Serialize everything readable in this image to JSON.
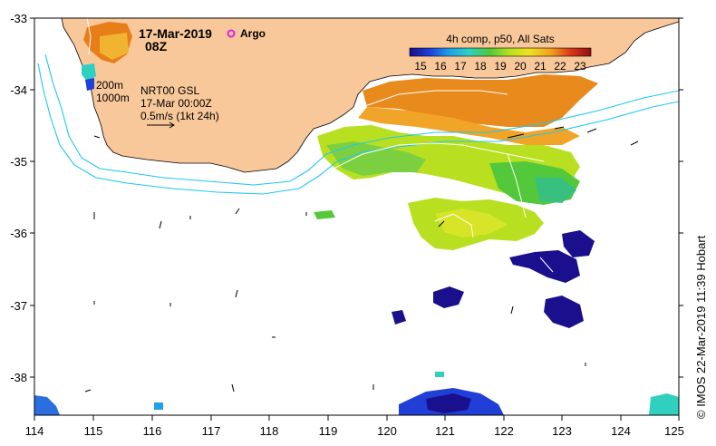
{
  "header": {
    "date": "17-Mar-2019",
    "time": "08Z",
    "argo_label": "Argo"
  },
  "info": {
    "contour_200": "200m",
    "contour_1000": "1000m",
    "product": "NRT00 GSL",
    "product_time": "17-Mar 00:00Z",
    "vector_scale": "0.5m/s (1kt 24h)"
  },
  "colorbar": {
    "title": "4h comp, p50, All Sats",
    "ticks": [
      "15",
      "16",
      "17",
      "18",
      "19",
      "20",
      "21",
      "22",
      "23"
    ],
    "range": [
      14.5,
      23.5
    ],
    "stops": [
      "#1a0f8c",
      "#1f3fd6",
      "#1fa0e8",
      "#2fd0c0",
      "#52c83a",
      "#b8e020",
      "#f0e020",
      "#f0a020",
      "#d83818",
      "#8c1010"
    ]
  },
  "axes": {
    "x_ticks": [
      "114",
      "115",
      "116",
      "117",
      "118",
      "119",
      "120",
      "121",
      "122",
      "123",
      "124",
      "125"
    ],
    "y_ticks": [
      "-33",
      "-34",
      "-35",
      "-36",
      "-37",
      "-38"
    ],
    "lon_range": [
      114,
      125
    ],
    "lat_range": [
      -38.5,
      -33
    ]
  },
  "credit": "© IMOS 22-Mar-2019 11:39 Hobart",
  "colors": {
    "land": "#f9c89a",
    "sea": "#ffffff",
    "isobath": "#1ec8f0"
  }
}
